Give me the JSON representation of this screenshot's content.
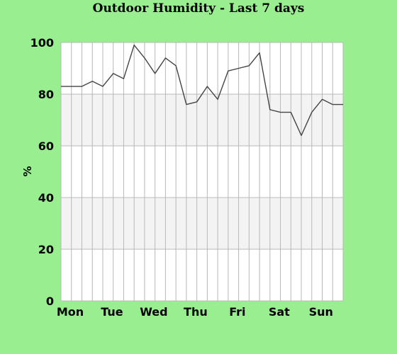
{
  "chart_data": {
    "type": "line",
    "title": "Outdoor Humidity - Last 7 days",
    "xlabel": "",
    "ylabel": "%",
    "ylim": [
      0,
      100
    ],
    "yticks": [
      0,
      20,
      40,
      60,
      80,
      100
    ],
    "day_labels": [
      "Mon",
      "Tue",
      "Wed",
      "Thu",
      "Fri",
      "Sat",
      "Sun"
    ],
    "bands": [
      [
        20,
        40
      ],
      [
        60,
        80
      ]
    ],
    "grid": true,
    "legend": "none",
    "colors": {
      "background": "#99ee90",
      "plot": "#ffffff",
      "band": "#f3f3f3",
      "grid": "#b8b8b8",
      "line": "#444444"
    },
    "series": [
      {
        "x": [
          0,
          0.25,
          0.5,
          0.75,
          1,
          1.25,
          1.5,
          1.75,
          2,
          2.25,
          2.5,
          2.75,
          3,
          3.25,
          3.5,
          3.75,
          4,
          4.25,
          4.5,
          4.75,
          5,
          5.25,
          5.5,
          5.75,
          6,
          6.25,
          6.5,
          6.75
        ],
        "values": [
          83,
          83,
          83,
          85,
          83,
          88,
          86,
          99,
          94,
          88,
          94,
          91,
          76,
          77,
          83,
          78,
          89,
          90,
          91,
          96,
          74,
          73,
          73,
          64,
          73,
          78,
          76,
          76
        ]
      }
    ]
  }
}
